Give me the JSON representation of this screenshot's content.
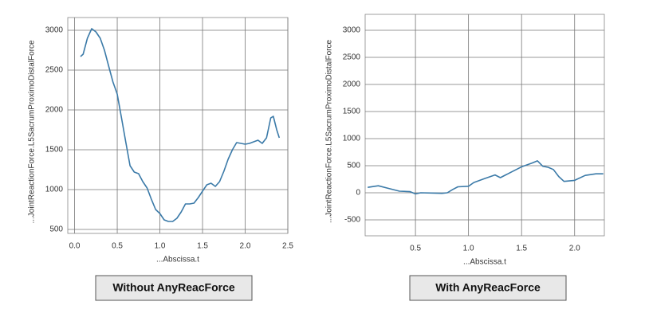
{
  "chart_data": [
    {
      "type": "line",
      "y_label": "...JointReactionForce.L5SacrumProximoDistalForce",
      "x_label": "...Abscissa.t",
      "color": "#3b7aa8",
      "grid": true,
      "xlim": [
        -0.08,
        2.5
      ],
      "ylim": [
        450,
        3160
      ],
      "xticks": [
        {
          "value": 0,
          "label": "0.0"
        },
        0.5,
        {
          "value": 1,
          "label": "1.0"
        },
        1.5,
        {
          "value": 2,
          "label": "2.0"
        },
        2.5
      ],
      "yticks": [
        500,
        1000,
        1500,
        2000,
        2500,
        3000
      ],
      "x": [
        0.07,
        0.1,
        0.15,
        0.2,
        0.25,
        0.3,
        0.35,
        0.4,
        0.45,
        0.5,
        0.55,
        0.6,
        0.65,
        0.7,
        0.75,
        0.8,
        0.85,
        0.9,
        0.95,
        1.0,
        1.05,
        1.1,
        1.15,
        1.2,
        1.25,
        1.3,
        1.35,
        1.4,
        1.45,
        1.5,
        1.55,
        1.6,
        1.65,
        1.7,
        1.75,
        1.8,
        1.85,
        1.9,
        1.95,
        2.0,
        2.05,
        2.1,
        2.15,
        2.2,
        2.25,
        2.3,
        2.33,
        2.37,
        2.4
      ],
      "values": [
        2670,
        2700,
        2900,
        3020,
        2980,
        2900,
        2750,
        2550,
        2350,
        2200,
        1900,
        1600,
        1300,
        1220,
        1200,
        1100,
        1020,
        880,
        750,
        700,
        620,
        600,
        600,
        640,
        720,
        820,
        820,
        830,
        900,
        980,
        1060,
        1080,
        1040,
        1100,
        1230,
        1380,
        1500,
        1590,
        1580,
        1570,
        1580,
        1600,
        1620,
        1580,
        1650,
        1900,
        1920,
        1750,
        1650
      ]
    },
    {
      "type": "line",
      "y_label": "...JointReactionForce.L5SacrumProximoDistalForce",
      "x_label": "...Abscissa.t",
      "color": "#3b7aa8",
      "grid": true,
      "xlim": [
        0.026,
        2.28
      ],
      "ylim": [
        -794,
        3294
      ],
      "xticks": [
        0.5,
        {
          "value": 1,
          "label": "1.0"
        },
        1.5,
        {
          "value": 2,
          "label": "2.0"
        }
      ],
      "yticks": [
        -500,
        0,
        500,
        1000,
        1500,
        2000,
        2500,
        3000
      ],
      "x": [
        0.05,
        0.15,
        0.25,
        0.35,
        0.45,
        0.5,
        0.55,
        0.65,
        0.75,
        0.8,
        0.85,
        0.9,
        1.0,
        1.05,
        1.15,
        1.25,
        1.3,
        1.4,
        1.5,
        1.6,
        1.65,
        1.7,
        1.75,
        1.8,
        1.85,
        1.9,
        2.0,
        2.1,
        2.2,
        2.27
      ],
      "values": [
        100,
        130,
        80,
        30,
        20,
        -20,
        0,
        -5,
        -10,
        0,
        60,
        110,
        120,
        190,
        260,
        330,
        280,
        380,
        480,
        550,
        590,
        490,
        470,
        430,
        300,
        210,
        230,
        320,
        350,
        350
      ]
    }
  ],
  "captions": [
    "Without AnyReacForce",
    "With AnyReacForce"
  ]
}
